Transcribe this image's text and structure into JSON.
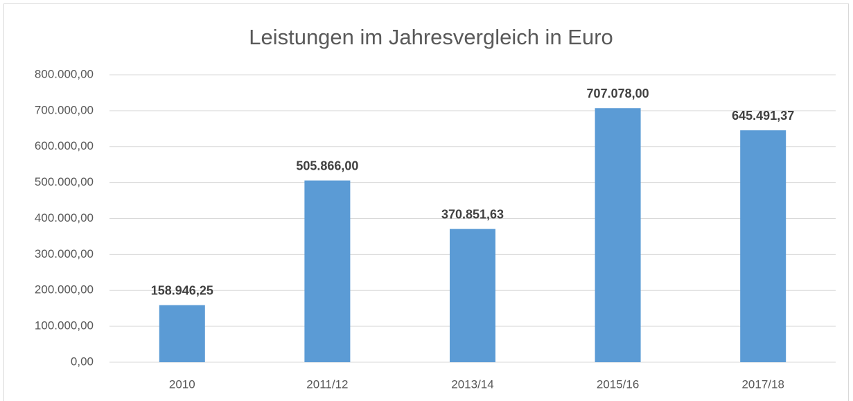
{
  "chart_data": {
    "type": "bar",
    "title": "Leistungen im Jahresvergleich in Euro",
    "categories": [
      "2010",
      "2011/12",
      "2013/14",
      "2015/16",
      "2017/18"
    ],
    "values": [
      158946.25,
      505866,
      370851.63,
      707078,
      645491.37
    ],
    "value_labels": [
      "158.946,25",
      "505.866,00",
      "370.851,63",
      "707.078,00",
      "645.491,37"
    ],
    "color": "#5b9bd5",
    "ylim": [
      0,
      800000
    ],
    "yticks": [
      {
        "value": 0,
        "label": "0,00"
      },
      {
        "value": 100000,
        "label": "100.000,00"
      },
      {
        "value": 200000,
        "label": "200.000,00"
      },
      {
        "value": 300000,
        "label": "300.000,00"
      },
      {
        "value": 400000,
        "label": "400.000,00"
      },
      {
        "value": 500000,
        "label": "500.000,00"
      },
      {
        "value": 600000,
        "label": "600.000,00"
      },
      {
        "value": 700000,
        "label": "700.000,00"
      },
      {
        "value": 800000,
        "label": "800.000,00"
      }
    ],
    "grid": true
  }
}
